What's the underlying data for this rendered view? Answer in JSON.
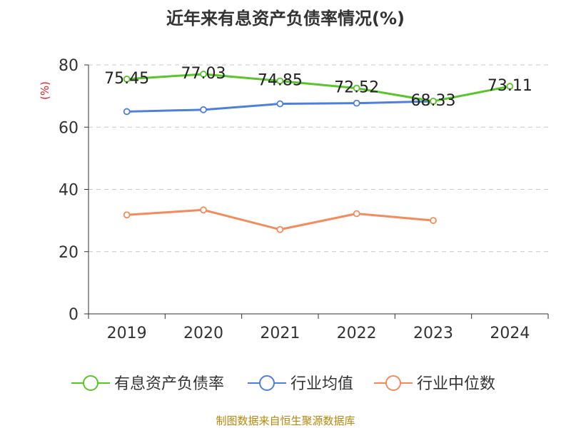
{
  "title": "近年来有息资产负债率情况(%)",
  "footer": "制图数据来自恒生聚源数据库",
  "chart_data": {
    "type": "line",
    "title": "近年来有息资产负债率情况(%)",
    "ylabel": "(%)",
    "xlabel": "",
    "ylim": [
      0,
      80
    ],
    "yticks": [
      0,
      20,
      40,
      60,
      80
    ],
    "grid": true,
    "legend_position": "bottom",
    "categories": [
      "2019",
      "2020",
      "2021",
      "2022",
      "2023",
      "2024"
    ],
    "series": [
      {
        "name": "有息资产负债率",
        "color": "#5ac528",
        "values": [
          75.45,
          77.03,
          74.85,
          72.52,
          68.33,
          73.11
        ],
        "labels": [
          "75.45",
          "77.03",
          "74.85",
          "72.52",
          "68.33",
          "73.11"
        ]
      },
      {
        "name": "行业均值",
        "color": "#4f7fdc",
        "values": [
          65.0,
          65.6,
          67.5,
          67.7,
          68.3,
          null
        ]
      },
      {
        "name": "行业中位数",
        "color": "#f48b5a",
        "values": [
          31.8,
          33.4,
          27.1,
          32.2,
          30.0,
          null
        ]
      }
    ]
  }
}
